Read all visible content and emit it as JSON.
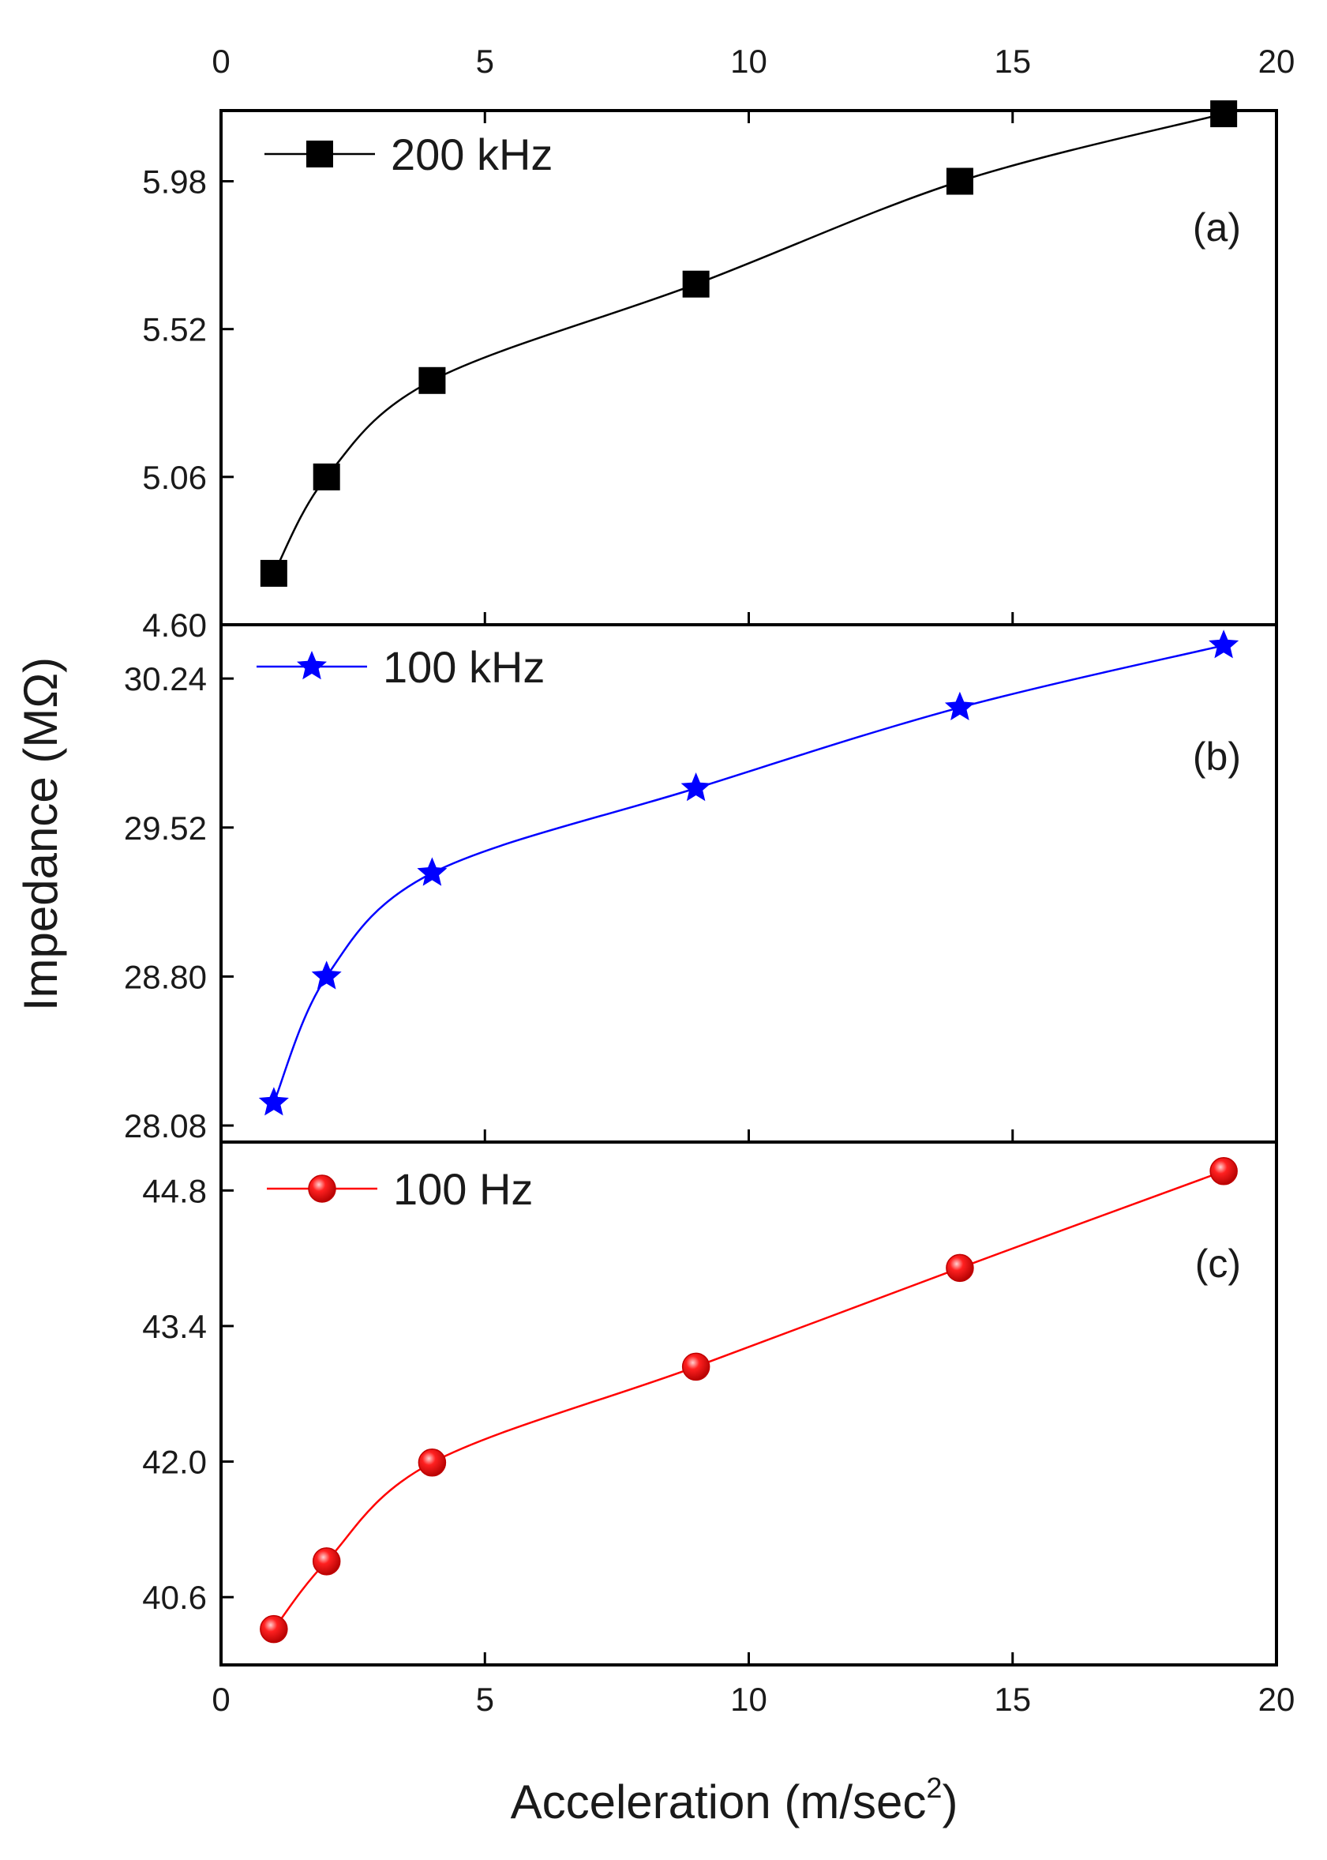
{
  "chart_data": [
    {
      "type": "line",
      "panel_label": "(a)",
      "xlim": [
        0,
        20
      ],
      "ylim": [
        4.6,
        6.2
      ],
      "yticks": [
        "4.60",
        "5.06",
        "5.52",
        "5.98"
      ],
      "series": [
        {
          "name": "200 kHz",
          "color": "#000000",
          "marker": "square",
          "x": [
            1,
            2,
            4,
            9,
            14,
            19
          ],
          "y": [
            4.76,
            5.06,
            5.36,
            5.66,
            5.98,
            6.19
          ]
        }
      ]
    },
    {
      "type": "line",
      "panel_label": "(b)",
      "xlim": [
        0,
        20
      ],
      "ylim": [
        28.0,
        30.5
      ],
      "yticks": [
        "28.08",
        "28.80",
        "29.52",
        "30.24"
      ],
      "series": [
        {
          "name": "100 kHz",
          "color": "#0000ff",
          "marker": "star",
          "x": [
            1,
            2,
            4,
            9,
            14,
            19
          ],
          "y": [
            28.19,
            28.8,
            29.3,
            29.71,
            30.1,
            30.4
          ]
        }
      ]
    },
    {
      "type": "line",
      "panel_label": "(c)",
      "xlim": [
        0,
        20
      ],
      "ylim": [
        39.9,
        45.3
      ],
      "yticks": [
        "40.6",
        "42.0",
        "43.4",
        "44.8"
      ],
      "series": [
        {
          "name": "100 Hz",
          "color": "#ff0000",
          "marker": "sphere",
          "x": [
            1,
            2,
            4,
            9,
            14,
            19
          ],
          "y": [
            40.27,
            40.97,
            41.99,
            42.98,
            44.0,
            45.0
          ]
        }
      ]
    }
  ],
  "axes": {
    "xticks": [
      "0",
      "5",
      "10",
      "15",
      "20"
    ],
    "xlabel": "Acceleration (m/sec",
    "xlabel_superscript": "2",
    "xlabel_suffix": ")",
    "ylabel": "Impedance (MΩ)"
  }
}
